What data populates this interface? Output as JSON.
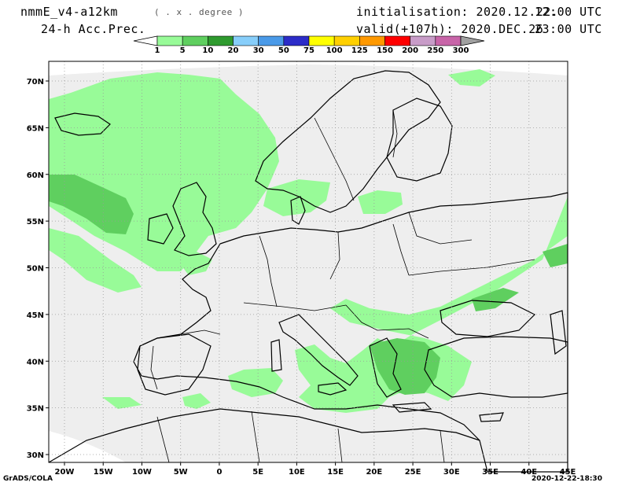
{
  "header": {
    "model": "nmmE_v4-a12km",
    "projection": "( . x . degree )",
    "field": "24-h Acc.Prec.",
    "init_label": "initialisation: 2020.12.22.",
    "init_time": "12:00 UTC",
    "valid_label": "valid(+107h): 2020.DEC.26",
    "valid_time": "23:00 UTC"
  },
  "footer": {
    "credit": "GrADS/COLA",
    "timestamp": "2020-12-22-18:30"
  },
  "colorbar": {
    "levels": [
      "1",
      "5",
      "10",
      "20",
      "30",
      "50",
      "75",
      "100",
      "125",
      "150",
      "200",
      "250",
      "300"
    ],
    "colors": [
      "#98fb98",
      "#5fcf5f",
      "#2e9a2e",
      "#87cefa",
      "#4a9ae8",
      "#2c2cc8",
      "#ffff00",
      "#ffd000",
      "#ff9900",
      "#ff0000",
      "#c89cc8",
      "#c864a8",
      "#8c008c",
      "#a0a0a0"
    ]
  },
  "map": {
    "lat_labels": [
      "70N",
      "65N",
      "60N",
      "55N",
      "50N",
      "45N",
      "40N",
      "35N",
      "30N"
    ],
    "lon_labels": [
      "20W",
      "15W",
      "10W",
      "5W",
      "0",
      "5E",
      "10E",
      "15E",
      "20E",
      "25E",
      "30E",
      "35E",
      "40E",
      "45E"
    ],
    "domain_fill": "#eeeeee",
    "precip_light": "#98fb98",
    "precip_medium": "#5fcf5f"
  }
}
